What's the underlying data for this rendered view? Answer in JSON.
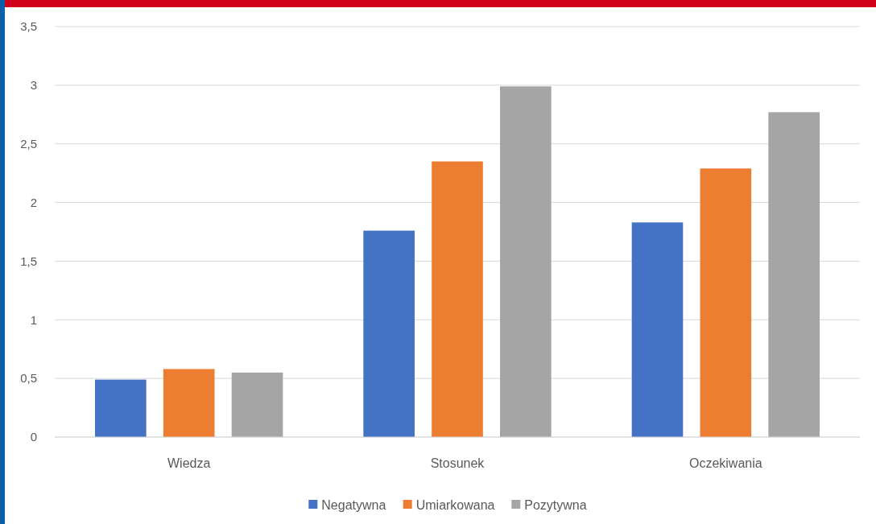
{
  "chart_data": {
    "type": "bar",
    "categories": [
      "Wiedza",
      "Stosunek",
      "Oczekiwania"
    ],
    "series": [
      {
        "name": "Negatywna",
        "color": "#4472c4",
        "values": [
          0.49,
          1.76,
          1.83
        ]
      },
      {
        "name": "Umiarkowana",
        "color": "#ed7d31",
        "values": [
          0.58,
          2.35,
          2.29
        ]
      },
      {
        "name": "Pozytywna",
        "color": "#a5a5a5",
        "values": [
          0.55,
          2.99,
          2.77
        ]
      }
    ],
    "ylim": [
      0,
      3.5
    ],
    "yticks": [
      0,
      {
        "value": 0.5,
        "label": "0,5"
      },
      1,
      {
        "value": 1.5,
        "label": "1,5"
      },
      2,
      {
        "value": 2.5,
        "label": "2,5"
      },
      3,
      {
        "value": 3.5,
        "label": "3,5"
      }
    ],
    "grid": "y",
    "legend": "bottom"
  }
}
